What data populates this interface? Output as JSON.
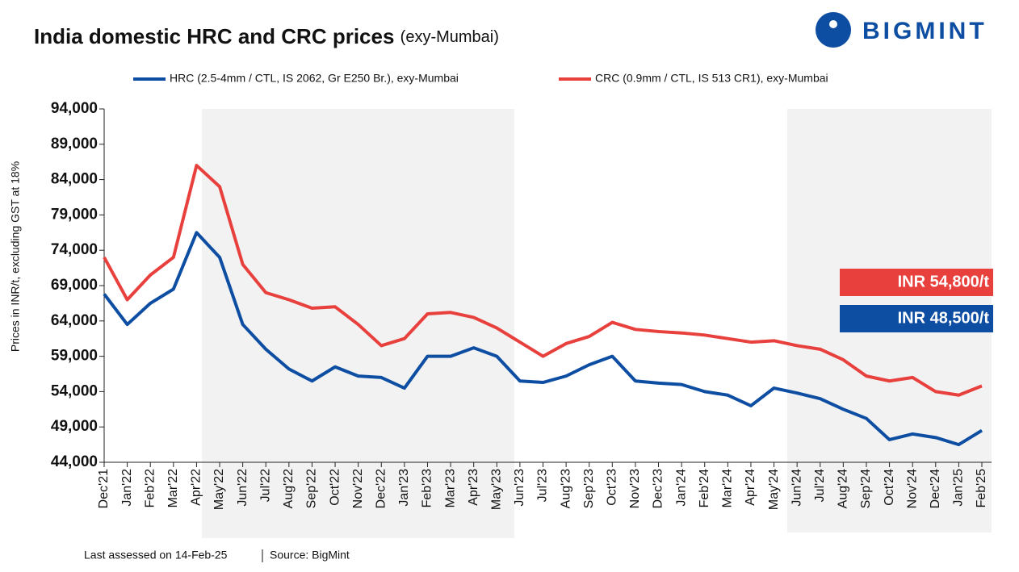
{
  "chart_data": {
    "type": "line",
    "title": "India domestic HRC and CRC prices",
    "subtitle": "(exy-Mumbai)",
    "brand": "BIGMINT",
    "y_label": "Prices in INR/t, excluding GST at 18%",
    "footer": "Last assessed on 14-Feb-25",
    "source": "Source: BigMint",
    "categories": [
      "Dec'21",
      "Jan'22",
      "Feb'22",
      "Mar'22",
      "Apr'22",
      "May'22",
      "Jun'22",
      "Jul'22",
      "Aug'22",
      "Sep'22",
      "Oct'22",
      "Nov'22",
      "Dec'22",
      "Jan'23",
      "Feb'23",
      "Mar'23",
      "Apr'23",
      "May'23",
      "Jun'23",
      "Jul'23",
      "Aug'23",
      "Sep'23",
      "Oct'23",
      "Nov'23",
      "Dec'23",
      "Jan'24",
      "Feb'24",
      "Mar'24",
      "Apr'24",
      "May'24",
      "Jun'24",
      "Jul'24",
      "Aug'24",
      "Sep'24",
      "Oct'24",
      "Nov'24",
      "Dec'24",
      "Jan'25",
      "Feb'25"
    ],
    "series": [
      {
        "name": "HRC (2.5-4mm / CTL, IS 2062, Gr E250 Br.), exy-Mumbai",
        "color": "#0d4ea3",
        "end_label": "INR 48,500/t",
        "values": [
          67800,
          63500,
          66500,
          68500,
          76500,
          73000,
          63500,
          60000,
          57200,
          55500,
          57500,
          56200,
          56000,
          54500,
          59000,
          59000,
          60200,
          59000,
          55500,
          55300,
          56200,
          57800,
          59000,
          55500,
          55200,
          55000,
          54000,
          53500,
          52000,
          54500,
          53800,
          53000,
          51500,
          50200,
          47200,
          48000,
          47500,
          46500,
          48500
        ]
      },
      {
        "name": "CRC (0.9mm / CTL, IS 513 CR1), exy-Mumbai",
        "color": "#e8403d",
        "end_label": "INR 54,800/t",
        "values": [
          73000,
          67000,
          70500,
          73000,
          86000,
          83000,
          72000,
          68000,
          67000,
          65800,
          66000,
          63500,
          60500,
          61500,
          65000,
          65200,
          64500,
          63000,
          61000,
          59000,
          60800,
          61800,
          63800,
          62800,
          62500,
          62300,
          62000,
          61500,
          61000,
          61200,
          60500,
          60000,
          58500,
          56200,
          55500,
          56000,
          54000,
          53500,
          54800
        ]
      }
    ],
    "ylim": [
      44000,
      94000
    ],
    "yticks": [
      {
        "value": 44000,
        "label": "44,000"
      },
      {
        "value": 49000,
        "label": "49,000"
      },
      {
        "value": 54000,
        "label": "54,000"
      },
      {
        "value": 59000,
        "label": "59,000"
      },
      {
        "value": 64000,
        "label": "64,000"
      },
      {
        "value": 69000,
        "label": "69,000"
      },
      {
        "value": 74000,
        "label": "74,000"
      },
      {
        "value": 79000,
        "label": "79,000"
      },
      {
        "value": 84000,
        "label": "84,000"
      },
      {
        "value": 89000,
        "label": "89,000"
      },
      {
        "value": 94000,
        "label": "94,000"
      }
    ],
    "grid": false
  }
}
